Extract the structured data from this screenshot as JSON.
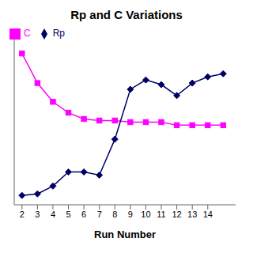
{
  "chart_data": {
    "type": "line",
    "title": "Rp and C Variations",
    "x_label": "Run Number",
    "x": [
      2,
      3,
      4,
      5,
      6,
      7,
      8,
      9,
      10,
      11,
      12,
      13,
      14,
      15
    ],
    "series": [
      {
        "name": "C",
        "color": "#ff00ff",
        "marker": "square",
        "values": [
          0.93,
          0.74,
          0.62,
          0.55,
          0.51,
          0.5,
          0.5,
          0.49,
          0.49,
          0.49,
          0.47,
          0.47,
          0.47,
          0.47
        ]
      },
      {
        "name": "Rp",
        "color": "#000066",
        "marker": "diamond",
        "values": [
          0.02,
          0.03,
          0.08,
          0.17,
          0.17,
          0.15,
          0.38,
          0.7,
          0.76,
          0.73,
          0.66,
          0.74,
          0.78,
          0.8
        ]
      }
    ],
    "xlim": [
      1.5,
      15.8
    ],
    "xticks": [
      2,
      3,
      4,
      5,
      6,
      7,
      8,
      9,
      10,
      11,
      12,
      13,
      14
    ],
    "ylim": [
      -0.04,
      1.02
    ],
    "yticks": [],
    "tick_labels": "x",
    "grid": false,
    "legend": "upper left"
  }
}
